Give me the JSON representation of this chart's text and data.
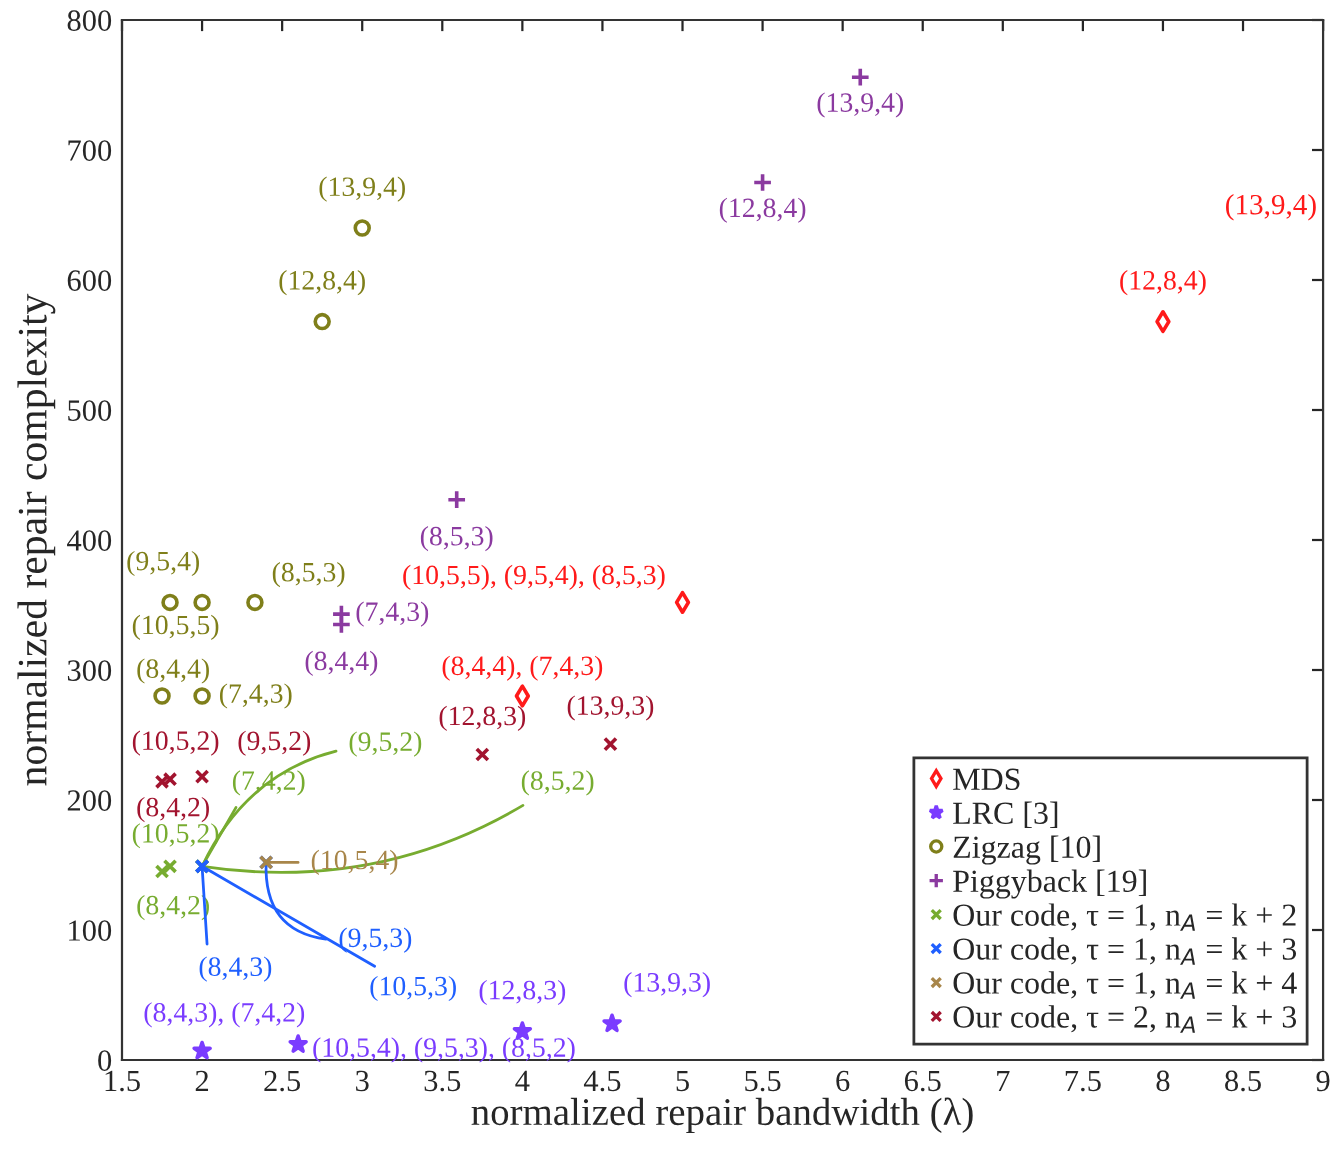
{
  "chart_data": {
    "type": "scatter",
    "xlabel": "normalized repair bandwidth (λ)",
    "ylabel": "normalized repair complexity",
    "xlim": [
      1.5,
      9
    ],
    "xticks": [
      1.5,
      2,
      2.5,
      3,
      3.5,
      4,
      4.5,
      5,
      5.5,
      6,
      6.5,
      7,
      7.5,
      8,
      8.5,
      9
    ],
    "ylim": [
      0,
      800
    ],
    "yticks": [
      0,
      100,
      200,
      300,
      400,
      500,
      600,
      700,
      800
    ],
    "grid": false,
    "legend": "bottom right",
    "series": [
      {
        "name": "MDS",
        "color": "#ff1a1a",
        "marker": "diamond",
        "x": [
          5,
          4,
          8
        ],
        "values": [
          352,
          280,
          568
        ],
        "value_labels": [
          "(10,5,5), (9,5,4), (8,5,3)",
          "(8,4,4), (7,4,3)",
          "(12,8,4)"
        ]
      },
      {
        "name": "LRC [3]",
        "color": "#7a3cff",
        "marker": "star",
        "x": [
          2,
          2.6,
          4,
          4.56
        ],
        "values": [
          7,
          12,
          22,
          28
        ],
        "value_labels": [
          "(8,4,3), (7,4,2)",
          "(10,5,4), (9,5,3), (8,5,2)",
          "(12,8,3)",
          "(13,9,3)"
        ]
      },
      {
        "name": "Zigzag [10]",
        "color": "#7f7f1a",
        "marker": "circle",
        "x": [
          1.75,
          2,
          1.8,
          2,
          2.33,
          2.75,
          3
        ],
        "values": [
          280,
          280,
          352,
          352,
          352,
          568,
          640
        ],
        "value_labels": [
          "(8,4,4)",
          "(7,4,3)",
          "(10,5,5)",
          "(9,5,4)",
          "(8,5,3)",
          "(12,8,4)",
          "(13,9,4)"
        ]
      },
      {
        "name": "Piggyback [19]",
        "color": "#8b3aa0",
        "marker": "plus",
        "x": [
          3.59,
          2.87,
          2.87,
          6.11,
          5.5
        ],
        "values": [
          431,
          343,
          335,
          756,
          675
        ],
        "value_labels": [
          "(8,5,3)",
          "(7,4,3)",
          "(8,4,4)",
          "(13,9,4)",
          "(12,8,4)"
        ]
      },
      {
        "name": "Our code, τ = 1, n$_{A}$ = k + 2",
        "color": "#77ac30",
        "marker": "cross",
        "x": [
          1.75,
          1.8,
          2,
          2,
          2
        ],
        "values": [
          145,
          149,
          149,
          149,
          149
        ],
        "value_labels": [
          "(8,4,2)",
          "(10,5,2)",
          "(7,4,2)",
          "(9,5,2)",
          "(8,5,2)"
        ]
      },
      {
        "name": "Our code, τ = 1, n$_{A}$ = k + 3",
        "color": "#1f5fff",
        "marker": "cross",
        "x": [
          2,
          2,
          2.4
        ],
        "values": [
          149,
          149,
          152
        ],
        "value_labels": [
          "(8,4,3)",
          "(10,5,3)",
          "(9,5,3)"
        ]
      },
      {
        "name": "Our code, τ = 1, n$_{A}$ = k + 4",
        "color": "#a8864a",
        "marker": "cross",
        "x": [
          2.4
        ],
        "values": [
          152
        ],
        "value_labels": [
          "(10,5,4)"
        ]
      },
      {
        "name": "Our code, τ = 2, n$_{A}$ = k + 3",
        "color": "#a2142f",
        "marker": "cross",
        "x": [
          1.75,
          1.8,
          2,
          3.75,
          4.55
        ],
        "values": [
          214,
          216,
          218,
          235,
          243
        ],
        "value_labels": [
          "(8,4,2)",
          "(10,5,2)",
          "(9,5,2)",
          "(12,8,3)",
          "(13,9,3)"
        ]
      }
    ],
    "annotations": [
      "(13,9,4)"
    ]
  }
}
